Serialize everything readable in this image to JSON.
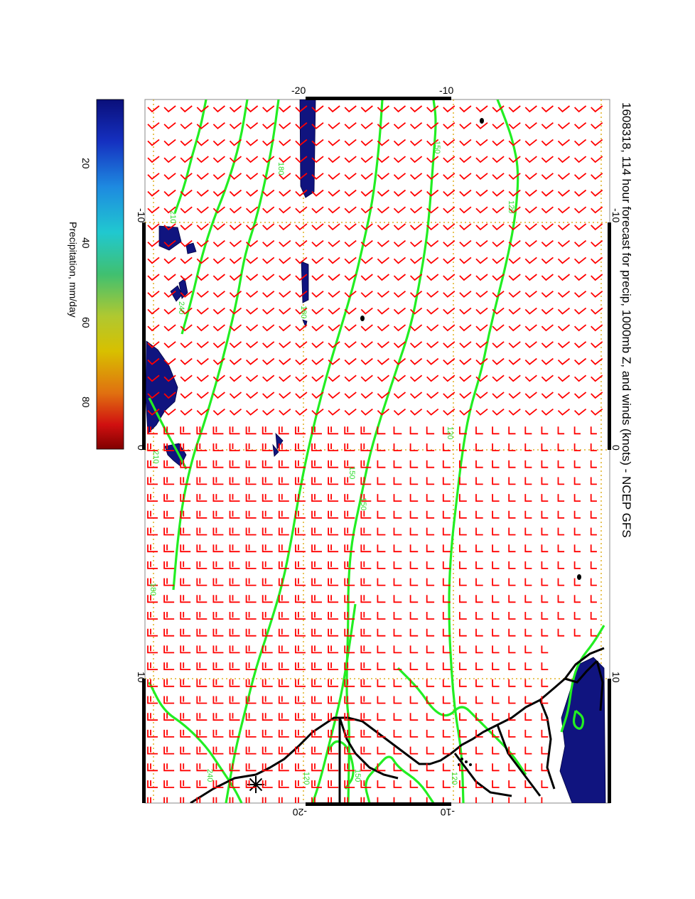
{
  "title": "1608318, 114 hour forecast for precip, 1000mb Z, and winds (knots) - NCEP GFS",
  "colorbar": {
    "label": "Precipitation, mm/day",
    "ticks": [
      "20",
      "40",
      "60",
      "80"
    ]
  },
  "axes": {
    "top_ticks": [
      "-20",
      "-10"
    ],
    "bottom_ticks": [
      "-20",
      "-10"
    ],
    "left_ticks": [
      "-10",
      "0",
      "10"
    ],
    "right_ticks": [
      "-10",
      "0",
      "10"
    ]
  },
  "contour_labels": [
    "120",
    "150",
    "180",
    "210",
    "240",
    "180",
    "150",
    "120",
    "120",
    "120",
    "210",
    "240",
    "150",
    "150",
    "180"
  ],
  "colors": {
    "wind_barbs": "#ff0000",
    "contours": "#22ee22",
    "precip": "#10147f",
    "coast": "#000000",
    "grid": "#e0b020"
  },
  "map_elements": [
    "wind-barbs",
    "geopotential-contours",
    "precipitation-shading",
    "coastline",
    "borders",
    "lat-lon-grid"
  ]
}
